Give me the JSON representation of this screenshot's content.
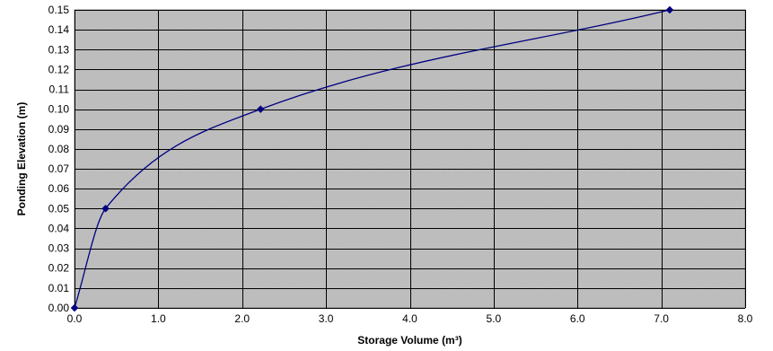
{
  "chart_data": {
    "type": "line",
    "title": "",
    "xlabel": "Storage Volume (m³)",
    "ylabel": "Ponding Elevation (m)",
    "xlim": [
      0,
      8
    ],
    "ylim": [
      0,
      0.15
    ],
    "x_ticks": [
      "0.0",
      "1.0",
      "2.0",
      "3.0",
      "4.0",
      "5.0",
      "6.0",
      "7.0",
      "8.0"
    ],
    "y_ticks": [
      "0.00",
      "0.01",
      "0.02",
      "0.03",
      "0.04",
      "0.05",
      "0.06",
      "0.07",
      "0.08",
      "0.09",
      "0.10",
      "0.11",
      "0.12",
      "0.13",
      "0.14",
      "0.15"
    ],
    "grid": true,
    "smooth": true,
    "series": [
      {
        "x": [
          0.0,
          0.37,
          2.22,
          7.1
        ],
        "y": [
          0.0,
          0.05,
          0.1,
          0.15
        ]
      }
    ],
    "colors": {
      "line": "#000080",
      "marker": "#000080",
      "plot_background": "#c0c0c0",
      "grid": "#000000",
      "background": "#ffffff"
    }
  }
}
